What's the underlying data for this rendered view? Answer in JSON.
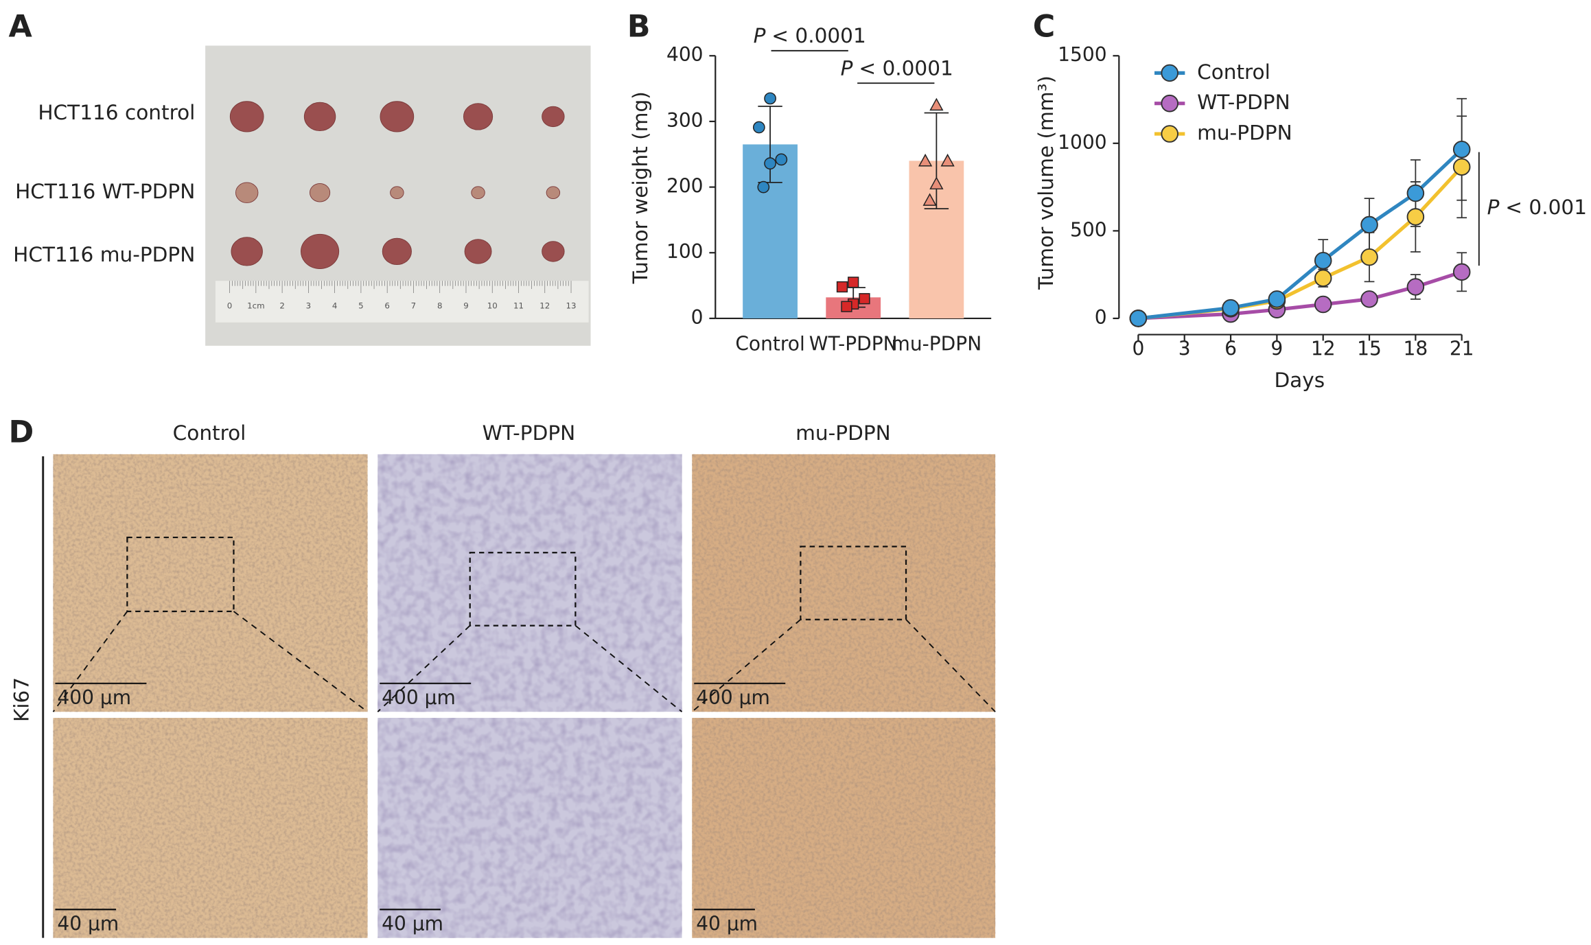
{
  "panel_labels": [
    "A",
    "B",
    "C",
    "D"
  ],
  "panel_a": {
    "rows": [
      "HCT116 control",
      "HCT116 WT-PDPN",
      "HCT116 mu-PDPN"
    ],
    "ruler_labels": [
      "0",
      "1cm",
      "2",
      "3",
      "4",
      "5",
      "6",
      "7",
      "8",
      "9",
      "10",
      "11",
      "12",
      "13"
    ]
  },
  "chart_data": [
    {
      "type": "bar",
      "ylabel": "Tumor weight (mg)",
      "categories": [
        "Control",
        "WT-PDPN",
        "mu-PDPN"
      ],
      "colors": [
        "#6aafd9",
        "#e8767c",
        "#f9c4ab"
      ],
      "point_colors": [
        "#2e86c1",
        "#d62828",
        "#e88f79"
      ],
      "markers": [
        "circle",
        "square",
        "triangle"
      ],
      "values": [
        265,
        32,
        240
      ],
      "errors": [
        58,
        15,
        73
      ],
      "points": [
        [
          335,
          291,
          242,
          236,
          200
        ],
        [
          55,
          48,
          30,
          22,
          18
        ],
        [
          325,
          240,
          240,
          205,
          180
        ]
      ],
      "ylim": [
        0,
        400
      ],
      "yticks": [
        0,
        100,
        200,
        300,
        400
      ],
      "annotations": [
        {
          "italic": "P",
          "text": "< 0.0001"
        },
        {
          "italic": "P",
          "text": "< 0.0001"
        }
      ]
    },
    {
      "type": "line",
      "xlabel": "Days",
      "ylabel": "Tumor volume (mm³)",
      "x": [
        0,
        6,
        9,
        12,
        15,
        18,
        21
      ],
      "series": [
        {
          "name": "Control",
          "color": "#2f86c0",
          "fill": "#3b9ad8",
          "values": [
            0,
            60,
            110,
            330,
            535,
            715,
            965
          ],
          "errors": [
            0,
            10,
            15,
            120,
            150,
            190,
            290
          ]
        },
        {
          "name": "WT-PDPN",
          "color": "#a64ca6",
          "fill": "#b66cc2",
          "values": [
            0,
            25,
            50,
            80,
            110,
            180,
            265
          ],
          "errors": [
            0,
            5,
            10,
            20,
            20,
            70,
            110
          ]
        },
        {
          "name": "mu-PDPN",
          "color": "#f2c12e",
          "fill": "#f7cd45",
          "values": [
            0,
            55,
            100,
            230,
            350,
            580,
            865
          ],
          "errors": [
            0,
            10,
            15,
            50,
            140,
            200,
            290
          ]
        }
      ],
      "xlim": [
        0,
        21
      ],
      "ylim": [
        0,
        1500
      ],
      "xticks": [
        0,
        3,
        6,
        9,
        12,
        15,
        18,
        21
      ],
      "yticks": [
        0,
        500,
        1000,
        1500
      ],
      "legend": "upper left",
      "annotation": {
        "italic": "P",
        "text": "< 0.001"
      }
    }
  ],
  "panel_d": {
    "columns": [
      "Control",
      "WT-PDPN",
      "mu-PDPN"
    ],
    "row_label": "Ki67",
    "scale_bars": [
      "400 μm",
      "40 μm"
    ]
  }
}
